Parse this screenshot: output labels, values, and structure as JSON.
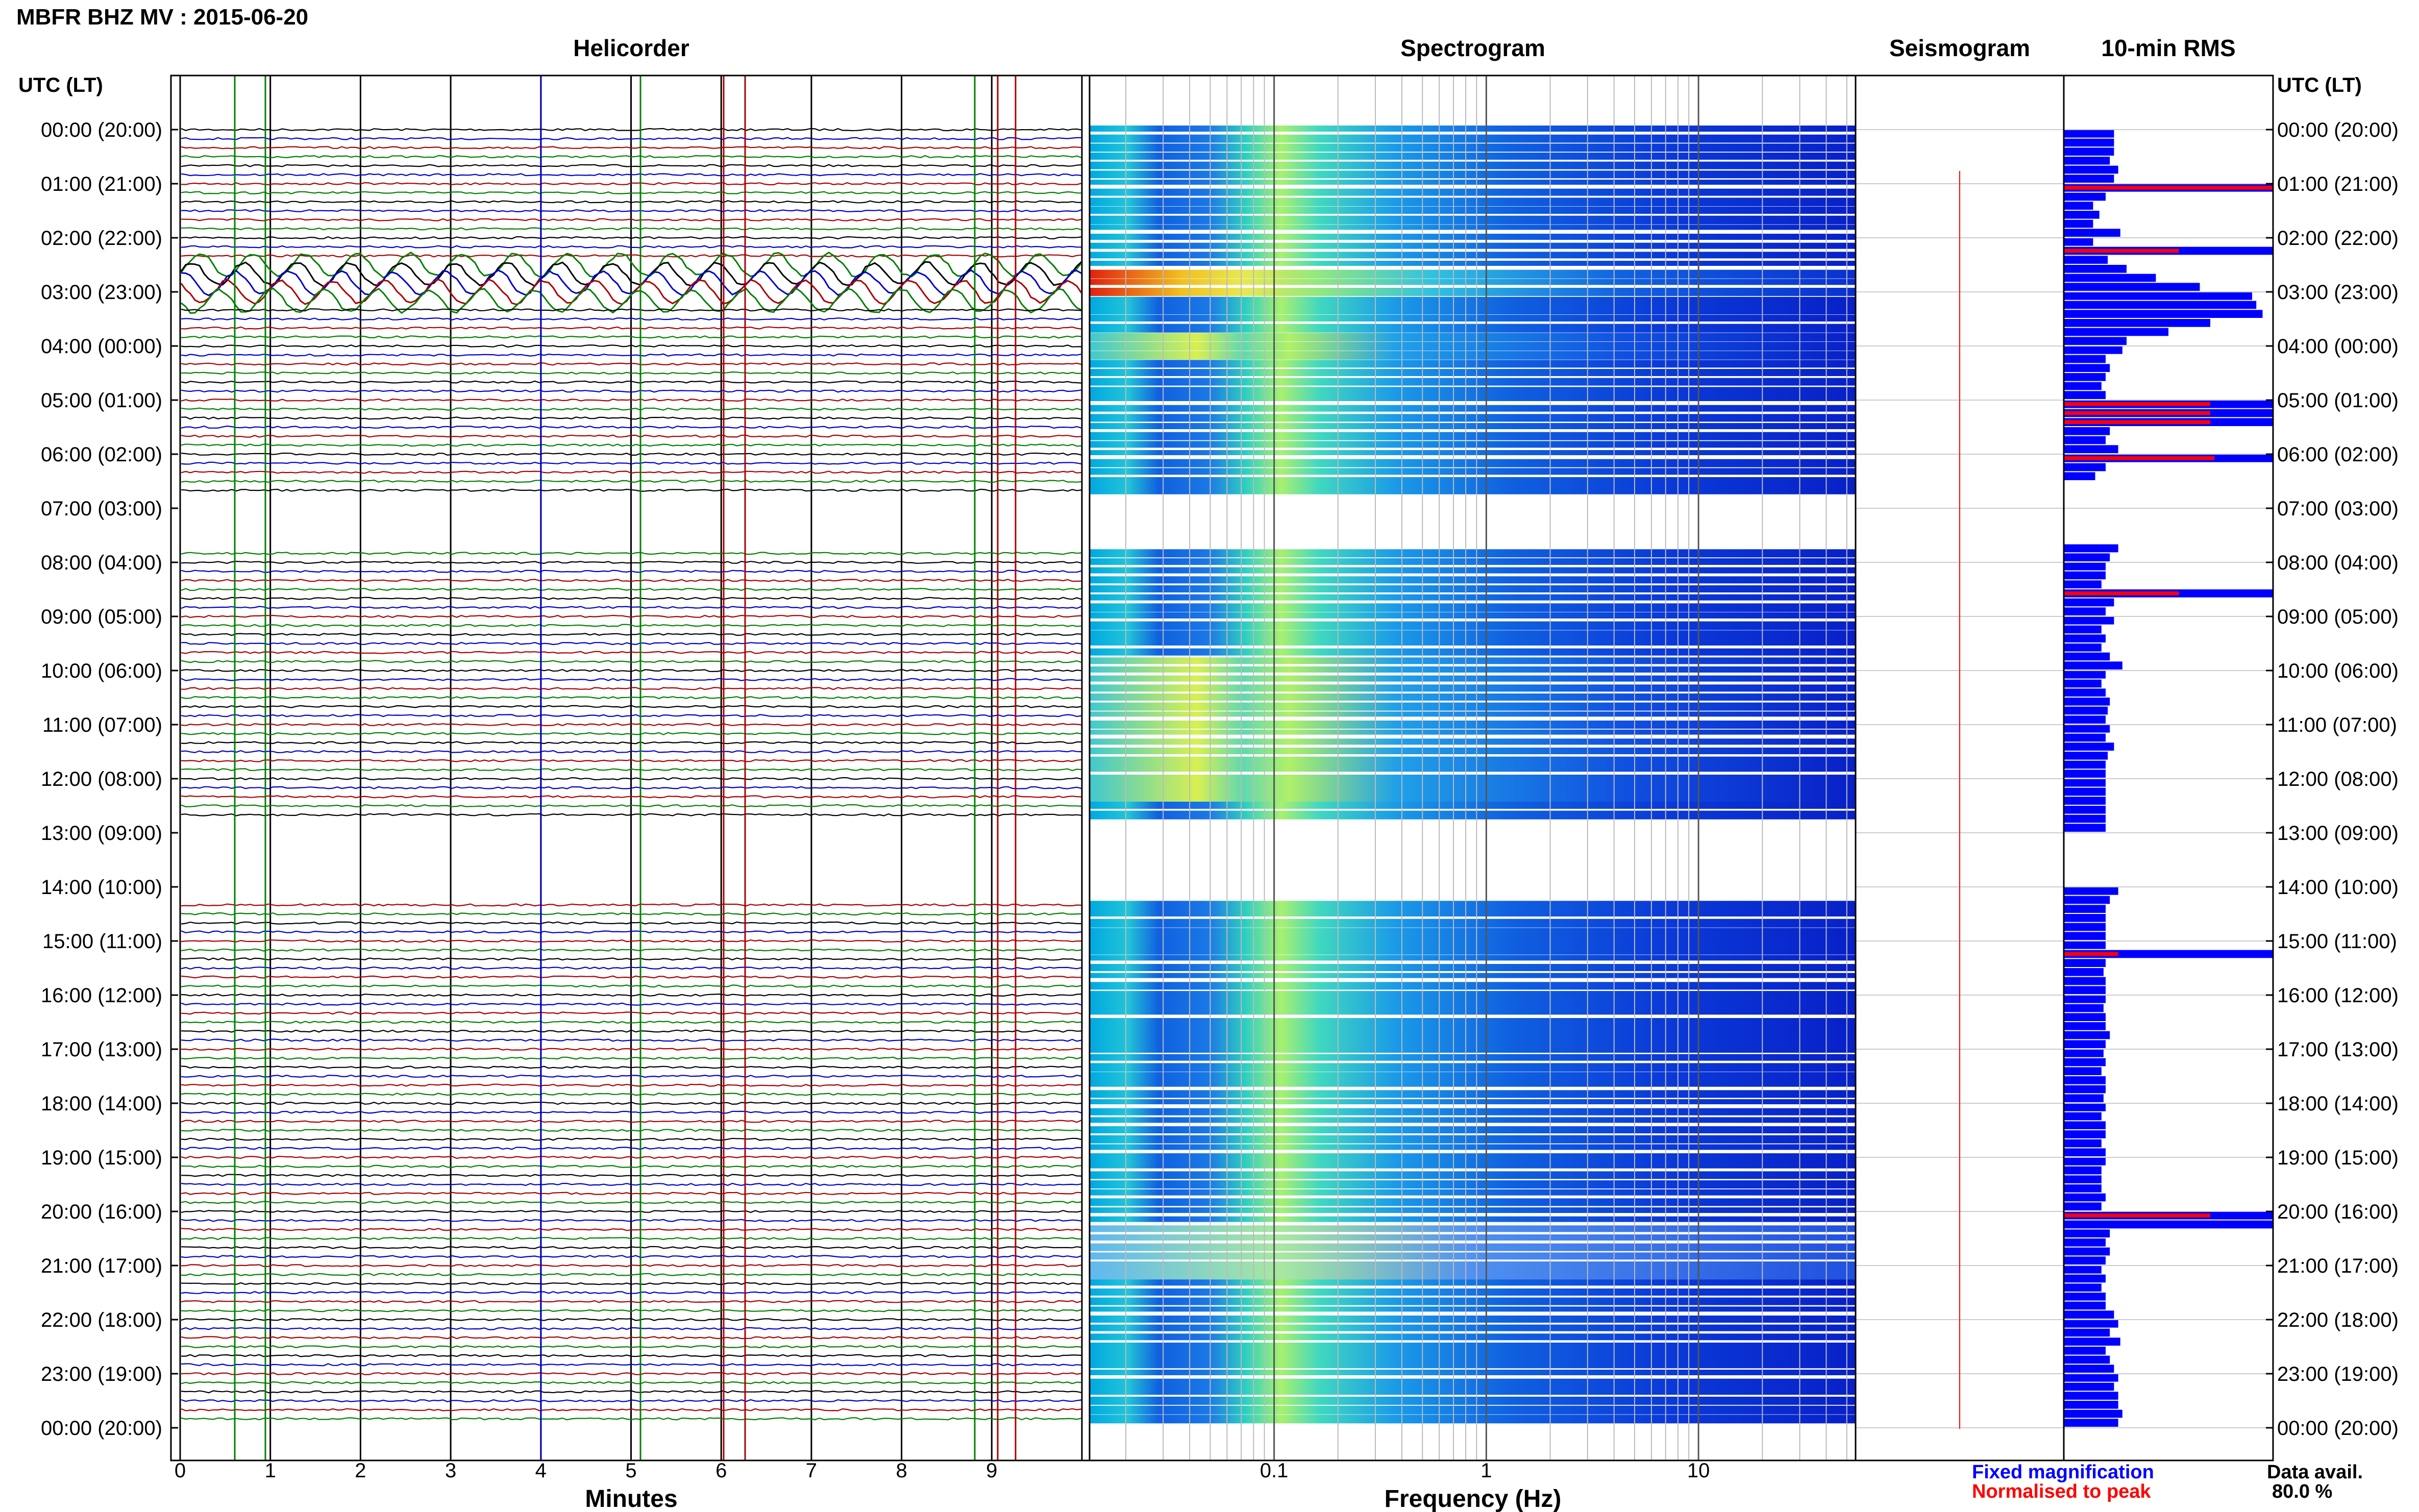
{
  "header": {
    "title": "MBFR BHZ MV : 2015-06-20"
  },
  "panels": {
    "helicorder": "Helicorder",
    "spectrogram": "Spectrogram",
    "seismogram": "Seismogram",
    "rms": "10-min RMS"
  },
  "axis": {
    "left_header": "UTC (LT)",
    "right_header": "UTC (LT)",
    "minutes_label": "Minutes",
    "freq_label": "Frequency (Hz)"
  },
  "legend": {
    "fixed": "Fixed magnification",
    "normalised": "Normalised to peak",
    "fixed_color": "#0000ff",
    "normalised_color": "#ff0000"
  },
  "availability": {
    "label": "Data avail.",
    "value": "80.0 %"
  },
  "chart_data": {
    "type": "helicorder",
    "time_labels": [
      "00:00 (20:00)",
      "01:00 (21:00)",
      "02:00 (22:00)",
      "03:00 (23:00)",
      "04:00 (00:00)",
      "05:00 (01:00)",
      "06:00 (02:00)",
      "07:00 (03:00)",
      "08:00 (04:00)",
      "09:00 (05:00)",
      "10:00 (06:00)",
      "11:00 (07:00)",
      "12:00 (08:00)",
      "13:00 (09:00)",
      "14:00 (10:00)",
      "15:00 (11:00)",
      "16:00 (12:00)",
      "17:00 (13:00)",
      "18:00 (14:00)",
      "19:00 (15:00)",
      "20:00 (16:00)",
      "21:00 (17:00)",
      "22:00 (18:00)",
      "23:00 (19:00)",
      "00:00 (20:00)"
    ],
    "minutes_ticks": [
      "0",
      "1",
      "2",
      "3",
      "4",
      "5",
      "6",
      "7",
      "8",
      "9"
    ],
    "freq_ticks": [
      "0.1",
      "1",
      "10"
    ],
    "trace_colors": [
      "#000000",
      "#0000cc",
      "#aa0000",
      "#008000"
    ],
    "gap_hours": [
      [
        6.8,
        7.8
      ],
      [
        12.8,
        14.2
      ]
    ],
    "rms_fixed": [
      0.24,
      0.24,
      0.24,
      0.22,
      0.26,
      0.24,
      1.0,
      0.2,
      0.14,
      0.17,
      0.14,
      0.27,
      0.14,
      1.0,
      0.21,
      0.3,
      0.44,
      0.65,
      0.9,
      0.92,
      0.95,
      0.7,
      0.5,
      0.3,
      0.28,
      0.2,
      0.22,
      0.2,
      0.18,
      0.2,
      1.0,
      1.0,
      1.0,
      0.22,
      0.2,
      0.26,
      1.0,
      0.2,
      0.15,
      null,
      null,
      null,
      null,
      null,
      null,
      null,
      0.26,
      0.22,
      0.2,
      0.2,
      0.18,
      1.0,
      0.24,
      0.2,
      0.24,
      0.18,
      0.2,
      0.18,
      0.22,
      0.28,
      0.2,
      0.18,
      0.2,
      0.22,
      0.21,
      0.2,
      0.22,
      0.2,
      0.24,
      0.21,
      0.2,
      0.2,
      0.2,
      0.2,
      0.2,
      0.2,
      0.2,
      0.2,
      null,
      null,
      null,
      null,
      null,
      null,
      0.26,
      0.22,
      0.2,
      0.2,
      0.2,
      0.2,
      0.2,
      1.0,
      0.2,
      0.19,
      0.2,
      0.2,
      0.2,
      0.19,
      0.2,
      0.2,
      0.22,
      0.2,
      0.19,
      0.2,
      0.18,
      0.2,
      0.2,
      0.19,
      0.2,
      0.18,
      0.2,
      0.2,
      0.18,
      0.2,
      0.2,
      0.18,
      0.18,
      0.18,
      0.2,
      0.18,
      1.0,
      1.0,
      0.22,
      0.2,
      0.22,
      0.2,
      0.18,
      0.2,
      0.18,
      0.2,
      0.2,
      0.24,
      0.26,
      0.22,
      0.27,
      0.2,
      0.22,
      0.24,
      0.26,
      0.24,
      0.26,
      0.26,
      0.28,
      0.26
    ],
    "rms_normalised": [
      null,
      null,
      null,
      null,
      null,
      null,
      1.0,
      null,
      null,
      null,
      null,
      null,
      null,
      0.55,
      null,
      null,
      null,
      null,
      null,
      null,
      null,
      null,
      null,
      null,
      null,
      null,
      null,
      null,
      null,
      null,
      0.7,
      0.7,
      0.7,
      null,
      null,
      null,
      0.72,
      null,
      null,
      null,
      null,
      null,
      null,
      null,
      null,
      null,
      null,
      null,
      null,
      null,
      null,
      0.55,
      null,
      null,
      null,
      null,
      null,
      null,
      null,
      null,
      null,
      null,
      null,
      null,
      null,
      null,
      null,
      null,
      null,
      null,
      null,
      null,
      null,
      null,
      null,
      null,
      null,
      null,
      null,
      null,
      null,
      null,
      null,
      null,
      null,
      null,
      null,
      null,
      null,
      null,
      null,
      0.26,
      null,
      null,
      null,
      null,
      null,
      null,
      null,
      null,
      null,
      null,
      null,
      null,
      null,
      null,
      null,
      null,
      null,
      null,
      null,
      null,
      null,
      null,
      null,
      null,
      null,
      null,
      null,
      null,
      0.7,
      null,
      null,
      null,
      null,
      null,
      null,
      null,
      null,
      null,
      null,
      null,
      null,
      null,
      null,
      null,
      null,
      null,
      null,
      null,
      null,
      null,
      null,
      null,
      null
    ]
  }
}
